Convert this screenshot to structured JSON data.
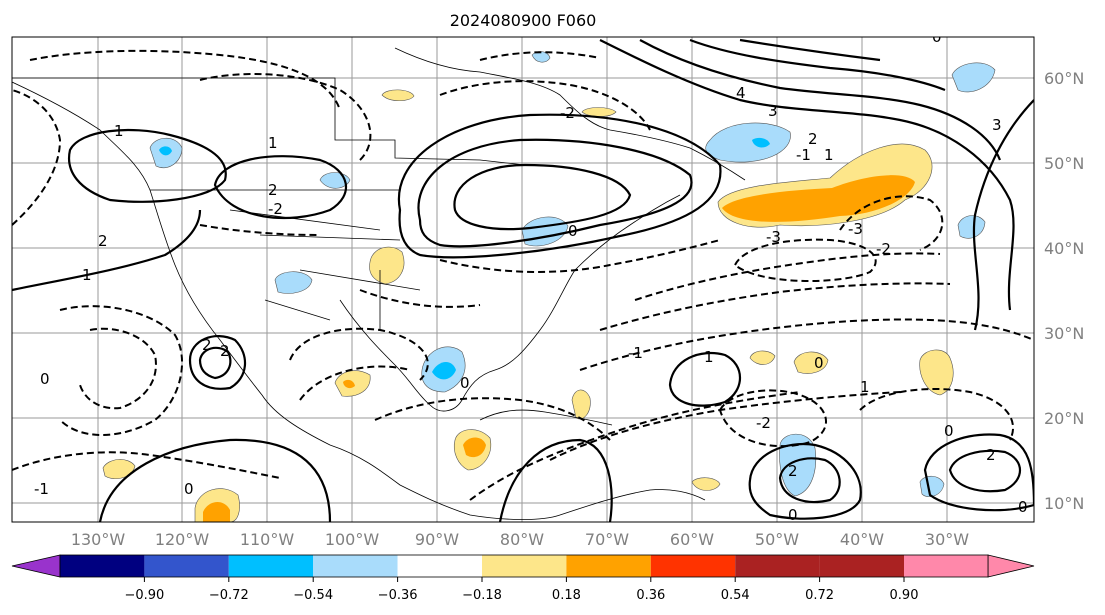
{
  "title": "2024080900 F060",
  "map": {
    "lat_labels": [
      "60°N",
      "50°N",
      "40°N",
      "30°N",
      "20°N",
      "10°N"
    ],
    "lon_labels": [
      "130°W",
      "120°W",
      "110°W",
      "100°W",
      "90°W",
      "80°W",
      "70°W",
      "60°W",
      "50°W",
      "40°W",
      "30°W"
    ],
    "contour_labels": [
      "4",
      "3",
      "2",
      "1",
      "0",
      "-1",
      "-2",
      "-3",
      "0",
      "1",
      "2",
      "3",
      "-2",
      "2",
      "1",
      "0",
      "0",
      "-1",
      "1",
      "2",
      "-3",
      "-2",
      "2",
      "0",
      "-1",
      "0",
      "0",
      "2",
      "1",
      "0",
      "0",
      "1",
      "-2",
      "2",
      "0"
    ],
    "shading_colors": {
      "light_blue": "#a9dcfb",
      "blue": "#00bfff",
      "yellow": "#fde68a",
      "orange": "#ffa200"
    }
  },
  "colorbar": {
    "ticks": [
      "−0.90",
      "−0.72",
      "−0.54",
      "−0.36",
      "−0.18",
      "0.18",
      "0.36",
      "0.54",
      "0.72",
      "0.90"
    ],
    "colors": [
      "#9933cc",
      "#000080",
      "#3355cc",
      "#00bfff",
      "#a9dcfb",
      "#ffffff",
      "#fde68a",
      "#ffa200",
      "#ff3300",
      "#aa2222",
      "#ff88aa"
    ]
  }
}
